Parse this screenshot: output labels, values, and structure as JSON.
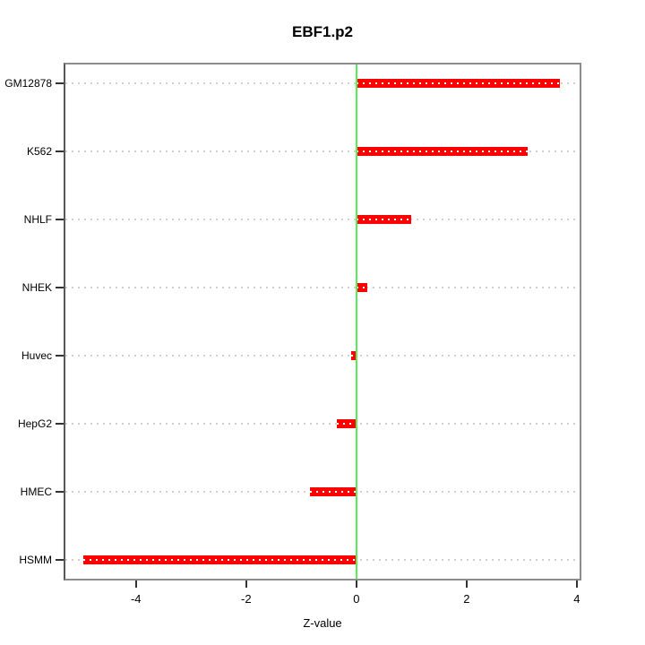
{
  "chart_data": {
    "type": "bar",
    "orientation": "horizontal",
    "title": "EBF1.p2",
    "xlabel": "Z-value",
    "ylabel": "",
    "categories": [
      "GM12878",
      "K562",
      "NHLF",
      "NHEK",
      "Huvec",
      "HepG2",
      "HMEC",
      "HSMM"
    ],
    "values": [
      3.7,
      3.1,
      1.0,
      0.2,
      -0.1,
      -0.35,
      -0.85,
      -4.95
    ],
    "xlim": [
      -5.28,
      4.05
    ],
    "ylim": [
      0.72,
      8.28
    ],
    "x_ticks": [
      -4,
      -2,
      0,
      2,
      4
    ],
    "zero_line_x": 0,
    "grid": true,
    "legend": null,
    "colors": {
      "bar": "#ff0000",
      "bar_center_dash": "#ffffff",
      "zero_line": "#57ee57",
      "grid": "#cfcfcf",
      "frame": "#8c8c8c",
      "axis_tick": "#333333",
      "text": "#000000",
      "background": "#ffffff"
    }
  }
}
